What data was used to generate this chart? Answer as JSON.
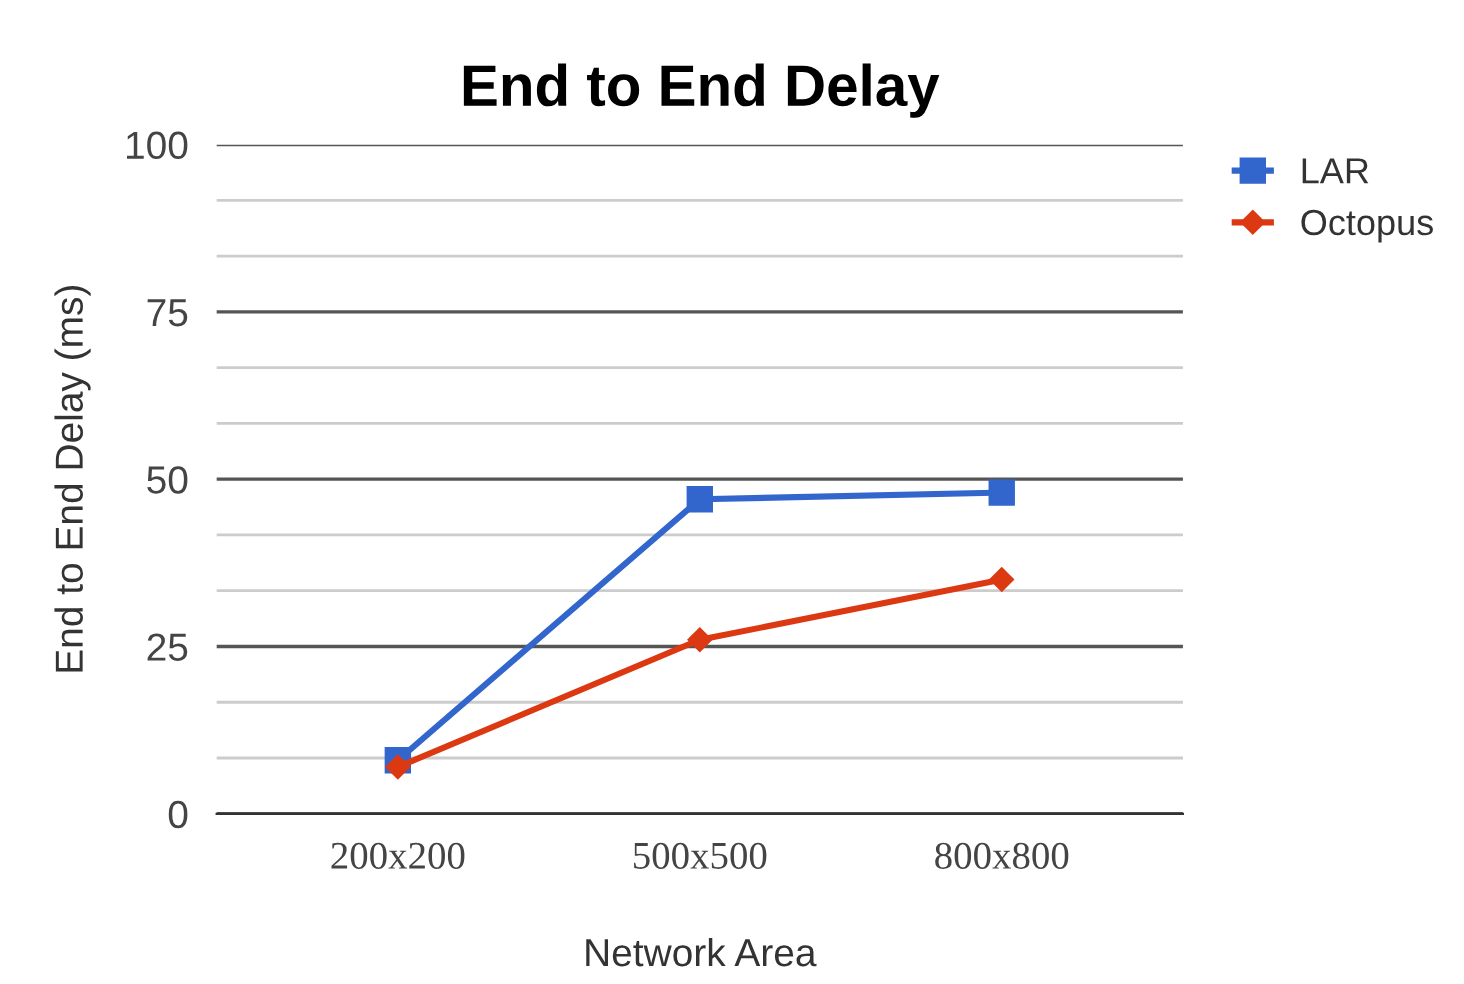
{
  "chart_data": {
    "type": "line",
    "title": "End to End Delay",
    "xlabel": "Network Area",
    "ylabel": "End to End Delay (ms)",
    "categories": [
      "200x200",
      "500x500",
      "800x800"
    ],
    "series": [
      {
        "name": "LAR",
        "color": "#3366cc",
        "marker": "square",
        "values": [
          8,
          47,
          48
        ]
      },
      {
        "name": "Octopus",
        "color": "#dc3912",
        "marker": "diamond",
        "values": [
          7,
          26,
          35
        ]
      }
    ],
    "ylim": [
      0,
      100
    ],
    "yticks": [
      0,
      {
        "value": 8.333,
        "label": null
      },
      {
        "value": 16.667,
        "label": null
      },
      25,
      {
        "value": 33.333,
        "label": null
      },
      {
        "value": 41.667,
        "label": null
      },
      50,
      {
        "value": 58.333,
        "label": null
      },
      {
        "value": 66.667,
        "label": null
      },
      75,
      {
        "value": 83.333,
        "label": null
      },
      {
        "value": 91.667,
        "label": null
      },
      100
    ],
    "grid": "y",
    "legend": "top right"
  }
}
